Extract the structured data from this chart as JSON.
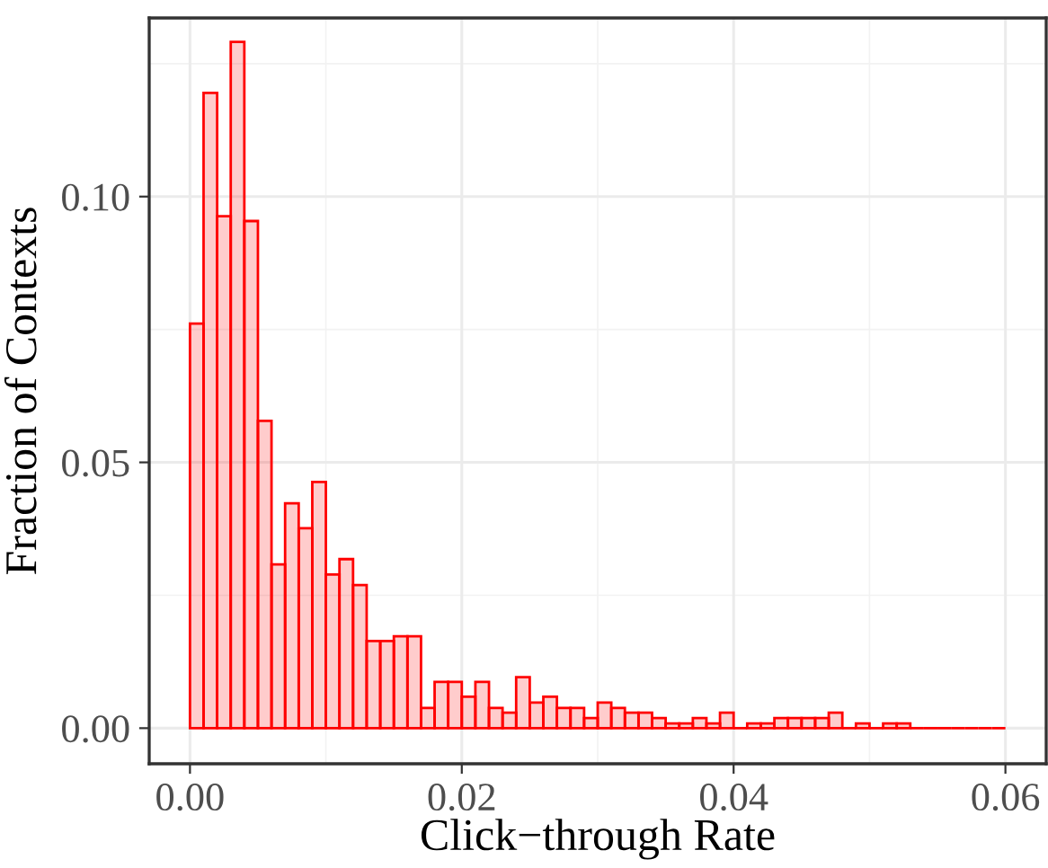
{
  "chart_data": {
    "type": "histogram",
    "xlabel": "Click−through Rate",
    "ylabel": "Fraction of Contexts",
    "bins": [
      0,
      0.001,
      0.002,
      0.003,
      0.004,
      0.005,
      0.006,
      0.007,
      0.008,
      0.009,
      0.01,
      0.011,
      0.012,
      0.013,
      0.014,
      0.015,
      0.016,
      0.017,
      0.018,
      0.019,
      0.02,
      0.021,
      0.022,
      0.023,
      0.024,
      0.025,
      0.026,
      0.027,
      0.028,
      0.029,
      0.03,
      0.031,
      0.032,
      0.033,
      0.034,
      0.035,
      0.036,
      0.037,
      0.038,
      0.039,
      0.04,
      0.041,
      0.042,
      0.043,
      0.044,
      0.045,
      0.046,
      0.047,
      0.048,
      0.049,
      0.05,
      0.051,
      0.052,
      0.053,
      0.054,
      0.055,
      0.056,
      0.057,
      0.058,
      0.059,
      0.06
    ],
    "values": [
      0.0761,
      0.1195,
      0.0963,
      0.1291,
      0.0954,
      0.0578,
      0.0308,
      0.0423,
      0.0376,
      0.0463,
      0.0289,
      0.0318,
      0.0269,
      0.0164,
      0.0164,
      0.0173,
      0.0173,
      0.0038,
      0.0087,
      0.0087,
      0.0059,
      0.0087,
      0.0038,
      0.0029,
      0.0096,
      0.0048,
      0.0059,
      0.0038,
      0.0038,
      0.0019,
      0.0048,
      0.0038,
      0.0029,
      0.0029,
      0.0019,
      0.0009,
      0.0009,
      0.0019,
      0.0009,
      0.0029,
      0,
      0.0009,
      0.0009,
      0.0019,
      0.0019,
      0.0019,
      0.0019,
      0.0029,
      0,
      0.0009,
      0,
      0.0009,
      0.0009,
      0,
      0,
      0,
      0,
      0,
      0,
      0
    ],
    "color": "#ff0000",
    "xlim": [
      -0.003,
      0.063
    ],
    "ylim": [
      -0.0067,
      0.1336
    ],
    "xticks": [
      {
        "value": 0,
        "label": "0.00"
      },
      {
        "value": 0.02,
        "label": "0.02"
      },
      {
        "value": 0.04,
        "label": "0.04"
      },
      {
        "value": 0.06,
        "label": "0.06"
      }
    ],
    "yticks": [
      {
        "value": 0,
        "label": "0.00"
      },
      {
        "value": 0.05,
        "label": "0.05"
      },
      {
        "value": 0.1,
        "label": "0.10"
      }
    ],
    "grid": true
  }
}
